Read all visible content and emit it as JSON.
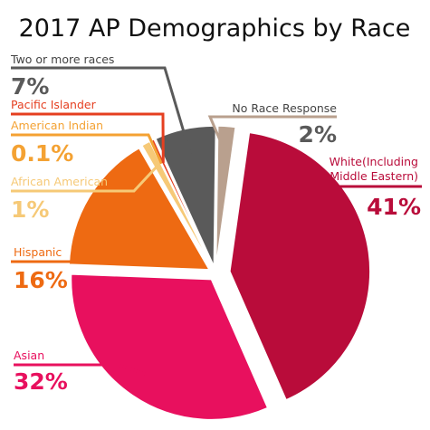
{
  "chart_data": {
    "type": "pie",
    "title": "2017 AP Demographics by Race",
    "slices": [
      {
        "label": "White(Including Middle Eastern)",
        "label_lines": [
          "White(Including",
          "Middle Eastern)"
        ],
        "value_label": "41%",
        "value": 41,
        "color": "#b90c3a"
      },
      {
        "label": "Asian",
        "label_lines": [
          "Asian"
        ],
        "value_label": "32%",
        "value": 32,
        "color": "#e8105e"
      },
      {
        "label": "Hispanic",
        "label_lines": [
          "Hispanic"
        ],
        "value_label": "16%",
        "value": 16,
        "color": "#ee6a12"
      },
      {
        "label": "African American",
        "label_lines": [
          "African American"
        ],
        "value_label": "1%",
        "value": 1,
        "color": "#f6c977"
      },
      {
        "label": "American Indian",
        "label_lines": [
          "American Indian"
        ],
        "value_label": "0.1%",
        "value": 0.1,
        "color": "#f4a233"
      },
      {
        "label": "Pacific Islander",
        "label_lines": [
          "Pacific Islander"
        ],
        "value_label": "",
        "value": 0.4,
        "color": "#e53f20"
      },
      {
        "label": "Two or more races",
        "label_lines": [
          "Two or more races"
        ],
        "value_label": "7%",
        "value": 7,
        "color": "#5a5a5a"
      },
      {
        "label": "No Race Response",
        "label_lines": [
          "No Race Response"
        ],
        "value_label": "2%",
        "value": 2,
        "color": "#b9a08e"
      }
    ],
    "value_label_color": "#5a5a5a"
  }
}
